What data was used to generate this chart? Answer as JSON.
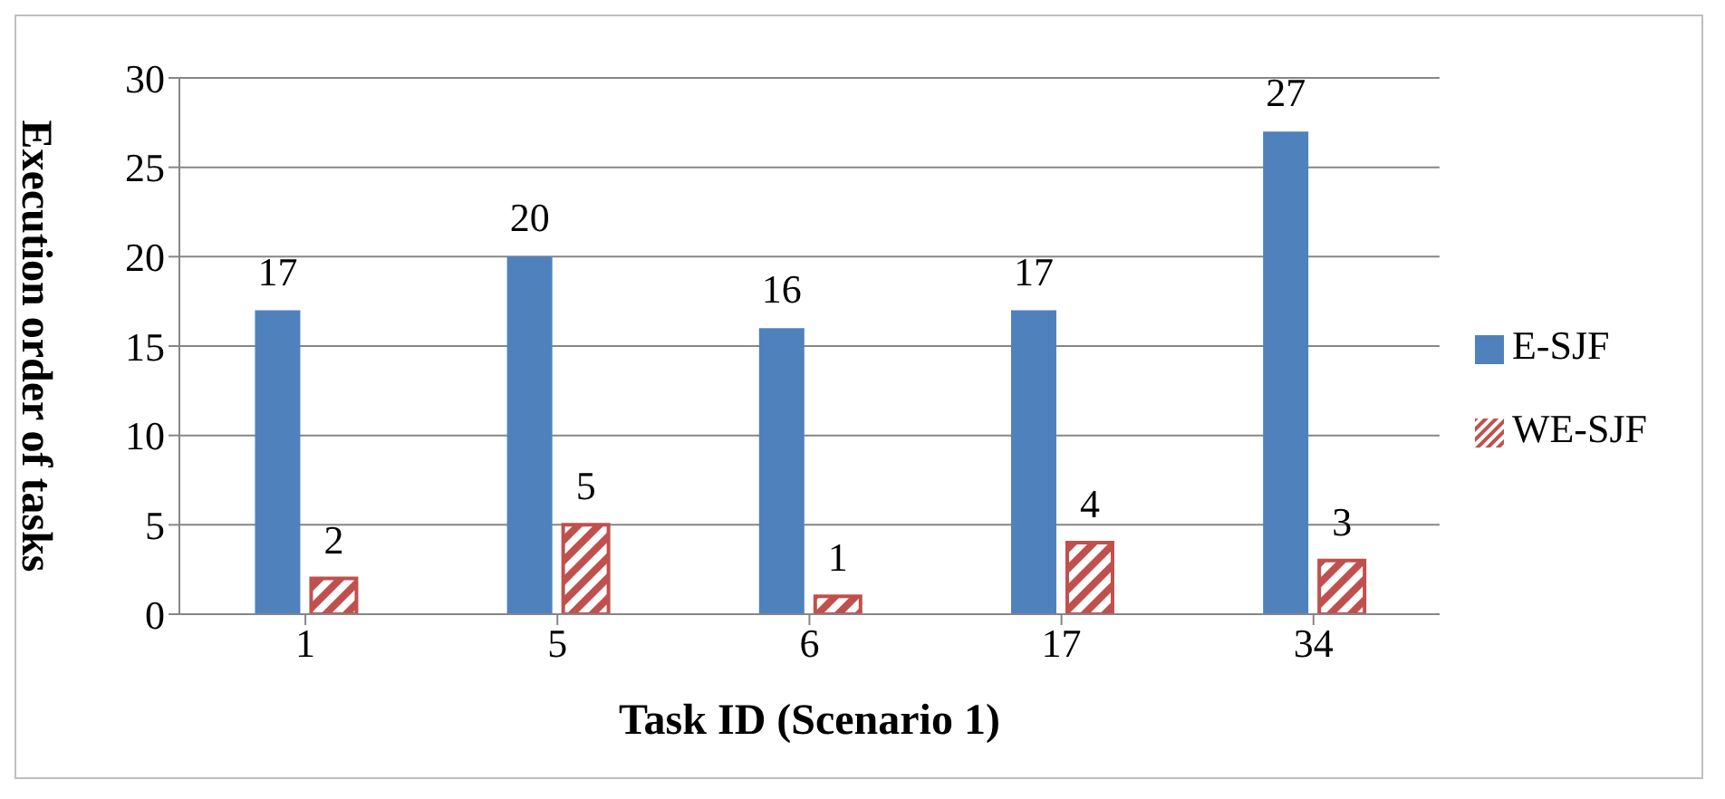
{
  "chart_data": {
    "type": "bar",
    "xlabel": "Task ID (Scenario 1)",
    "ylabel": "Execution order of tasks",
    "categories": [
      "1",
      "5",
      "6",
      "17",
      "34"
    ],
    "series": [
      {
        "name": "E-SJF",
        "color": "#4f81bd",
        "values": [
          17,
          20,
          16,
          17,
          27
        ]
      },
      {
        "name": "WE-SJF",
        "color": "#c0504d",
        "values": [
          2,
          5,
          1,
          4,
          3
        ]
      }
    ],
    "ylim": [
      0,
      30
    ],
    "yticks": [
      0,
      5,
      10,
      15,
      20,
      25,
      30
    ],
    "grid": "y",
    "legend": "right",
    "data_labels": true
  }
}
